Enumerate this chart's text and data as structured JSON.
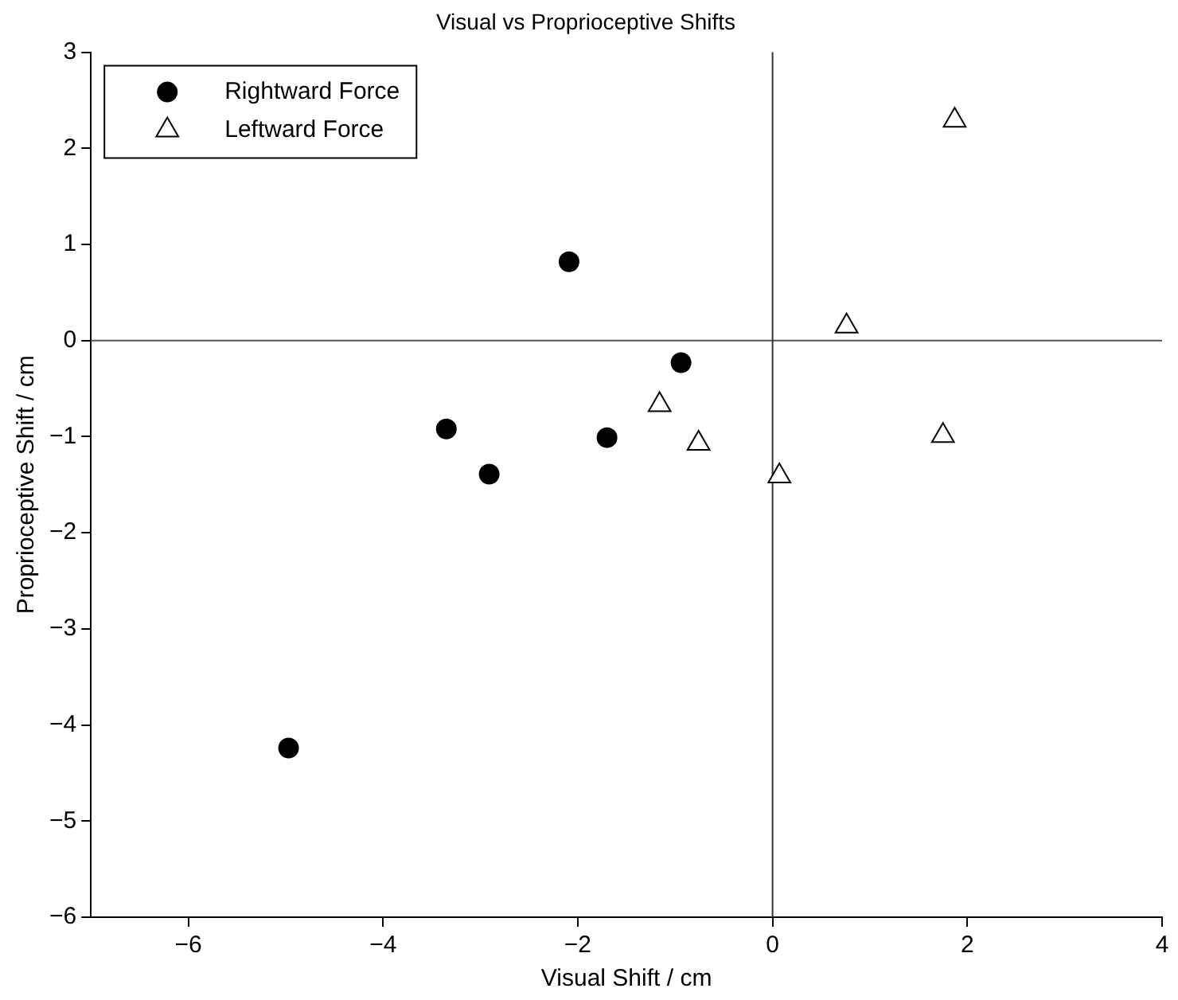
{
  "chart_data": {
    "type": "scatter",
    "title": "Visual vs Proprioceptive Shifts",
    "xlabel": "Visual Shift / cm",
    "ylabel": "Proprioceptive Shift / cm",
    "series": [
      {
        "name": "Rightward Force",
        "color": "#000000",
        "marker": "circle",
        "x": [
          -2.09,
          -0.94,
          -1.7,
          -3.35,
          -2.91,
          -4.97
        ],
        "values": [
          0.82,
          -0.23,
          -1.01,
          -0.92,
          -1.39,
          -4.24
        ]
      },
      {
        "name": "Leftward Force",
        "color": "#000000",
        "marker": "triangle",
        "x": [
          1.87,
          0.76,
          -1.16,
          -0.76,
          0.07,
          1.75
        ],
        "values": [
          2.29,
          0.15,
          -0.67,
          -1.07,
          -1.41,
          -0.99
        ]
      }
    ],
    "xlim": [
      -7,
      4
    ],
    "xticks": [
      -6,
      -4,
      -2,
      0,
      2,
      4
    ],
    "ylim": [
      -6,
      3
    ],
    "yticks": [
      -6,
      -5,
      -4,
      -3,
      -2,
      -1,
      0,
      1,
      2,
      3
    ],
    "ref_lines": [
      {
        "axis": "y",
        "value": 0,
        "color": "#555555"
      },
      {
        "axis": "x",
        "value": 0,
        "color": "#333333"
      }
    ],
    "grid": false,
    "legend": "top left"
  }
}
